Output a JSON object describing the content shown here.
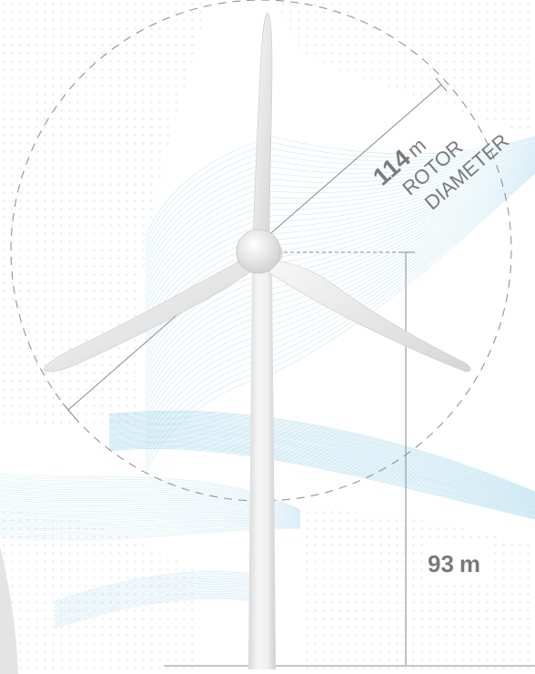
{
  "rotor": {
    "value": "114",
    "unit": "m",
    "label_line1": "ROTOR",
    "label_line2": "DIAMETER"
  },
  "hub_height": {
    "value": "93",
    "unit": "m"
  },
  "colors": {
    "wave_lines": "#9fd3ea",
    "dimension_lines": "#8a8a8a",
    "turbine_body": "#eeeeee",
    "dot_pattern": "#ececec"
  }
}
